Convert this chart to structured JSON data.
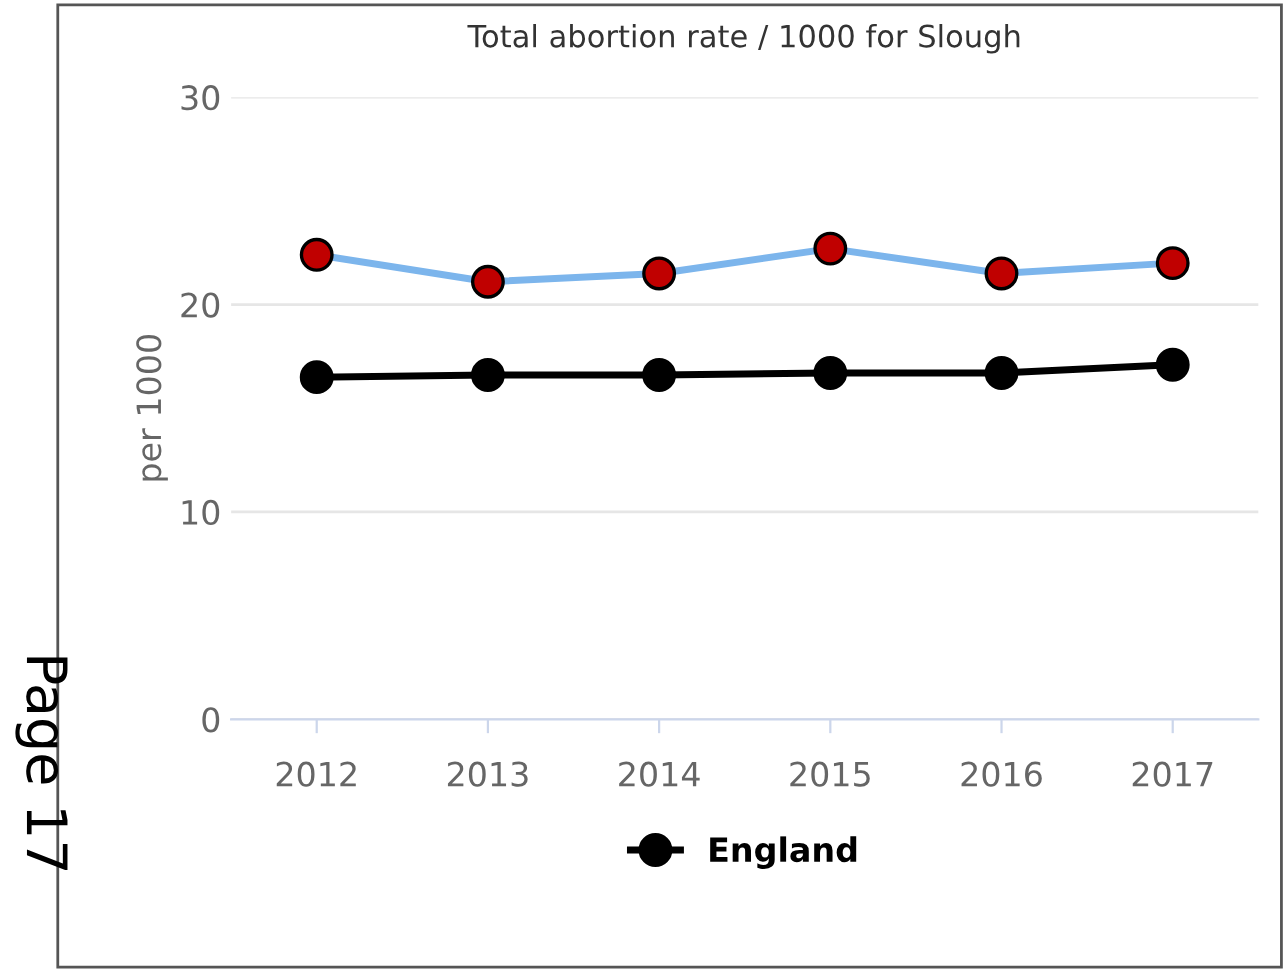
{
  "chart_data": {
    "type": "line",
    "title": "Total abortion rate / 1000 for Slough",
    "ylabel": "per 1000",
    "categories": [
      "2012",
      "2013",
      "2014",
      "2015",
      "2016",
      "2017"
    ],
    "series": [
      {
        "color": "#7cb5ec",
        "colors": [
          "#c00000",
          "#c00000",
          "#c00000",
          "#c00000",
          "#c00000",
          "#c00000"
        ],
        "values": [
          22.4,
          21.1,
          21.5,
          22.7,
          21.5,
          22.0
        ]
      },
      {
        "name": "England",
        "color": "#000000",
        "values": [
          16.5,
          16.6,
          16.6,
          16.7,
          16.7,
          17.1
        ]
      }
    ],
    "ylim": [
      0,
      30
    ],
    "yticks": [
      0,
      10,
      20,
      30
    ],
    "grid": "y",
    "legend": "bottom",
    "marker": "circle",
    "line_style": "solid",
    "annotations": [
      "Page 17"
    ]
  }
}
